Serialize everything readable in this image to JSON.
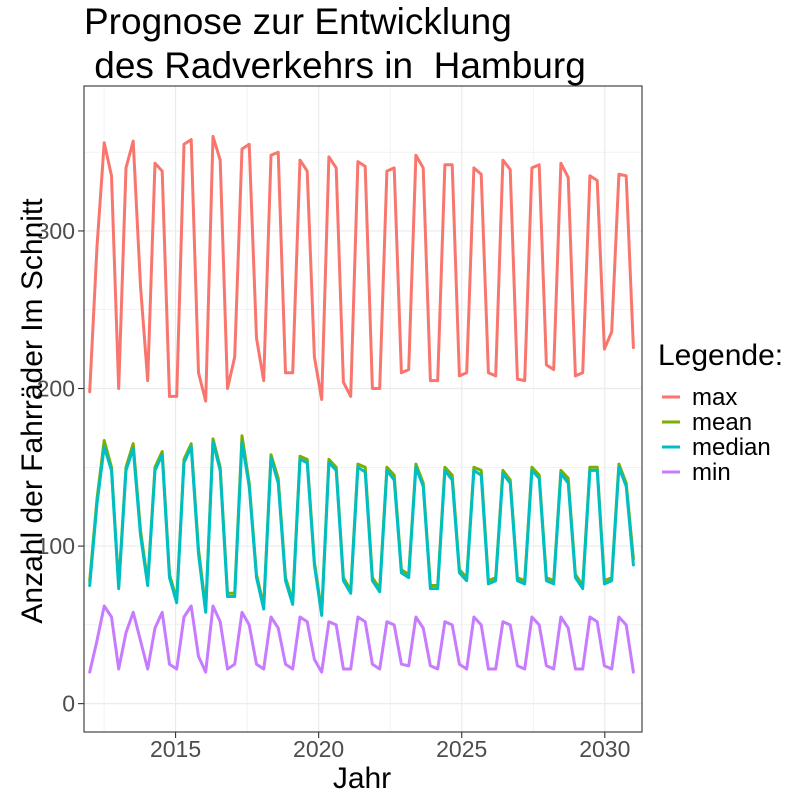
{
  "chart_data": {
    "type": "line",
    "title_lines": [
      "Prognose zur Entwicklung",
      " des Radverkehrs in  Hamburg"
    ],
    "xlabel": "Jahr",
    "ylabel": "Anzahl der Fahrräder Im Schnitt",
    "xlim": [
      2011.8,
      2031.3
    ],
    "ylim": [
      -18,
      392
    ],
    "x_ticks": [
      2015,
      2020,
      2025,
      2030
    ],
    "x_tick_labels": [
      "2015",
      "2020",
      "2025",
      "2030"
    ],
    "y_ticks": [
      0,
      100,
      200,
      300
    ],
    "y_tick_labels": [
      "0",
      "100",
      "200",
      "300"
    ],
    "grid": true,
    "legend": {
      "title": "Legende:",
      "position": "right",
      "entries": [
        "max",
        "mean",
        "median",
        "min"
      ]
    },
    "x_start": 2012.0,
    "x_end": 2031.0,
    "series": [
      {
        "name": "max",
        "color": "#F8766D",
        "values": [
          198,
          290,
          356,
          335,
          200,
          340,
          357,
          265,
          205,
          343,
          338,
          195,
          195,
          355,
          358,
          210,
          192,
          360,
          345,
          200,
          220,
          352,
          355,
          232,
          205,
          348,
          350,
          210,
          210,
          345,
          338,
          220,
          193,
          347,
          340,
          204,
          195,
          344,
          341,
          200,
          200,
          338,
          340,
          210,
          212,
          348,
          340,
          205,
          205,
          342,
          342,
          208,
          210,
          340,
          336,
          210,
          208,
          345,
          339,
          206,
          205,
          340,
          342,
          215,
          212,
          343,
          334,
          208,
          210,
          335,
          332,
          225,
          236,
          336,
          335,
          226
        ]
      },
      {
        "name": "mean",
        "color": "#7CAE00",
        "values": [
          78,
          130,
          167,
          150,
          75,
          150,
          165,
          110,
          77,
          150,
          160,
          82,
          66,
          155,
          165,
          98,
          60,
          168,
          150,
          70,
          70,
          170,
          140,
          82,
          62,
          158,
          143,
          80,
          65,
          157,
          155,
          90,
          58,
          155,
          150,
          80,
          72,
          152,
          150,
          80,
          73,
          150,
          145,
          85,
          82,
          152,
          140,
          75,
          75,
          150,
          145,
          85,
          80,
          150,
          148,
          78,
          80,
          148,
          142,
          80,
          78,
          150,
          145,
          80,
          78,
          148,
          143,
          82,
          75,
          150,
          150,
          78,
          80,
          152,
          140,
          92
        ]
      },
      {
        "name": "median",
        "color": "#00BFC4",
        "values": [
          75,
          127,
          163,
          148,
          73,
          148,
          162,
          107,
          75,
          148,
          158,
          80,
          64,
          153,
          163,
          95,
          58,
          166,
          148,
          68,
          68,
          166,
          138,
          80,
          60,
          156,
          140,
          78,
          63,
          155,
          153,
          88,
          56,
          153,
          148,
          78,
          70,
          150,
          147,
          78,
          71,
          148,
          142,
          83,
          80,
          150,
          138,
          73,
          73,
          148,
          142,
          83,
          78,
          148,
          145,
          76,
          78,
          146,
          140,
          78,
          76,
          148,
          143,
          78,
          76,
          146,
          140,
          80,
          73,
          148,
          148,
          76,
          78,
          150,
          138,
          88
        ]
      },
      {
        "name": "min",
        "color": "#C77CFF",
        "values": [
          20,
          40,
          62,
          55,
          22,
          45,
          58,
          40,
          22,
          48,
          58,
          25,
          22,
          55,
          62,
          30,
          20,
          62,
          52,
          22,
          25,
          58,
          50,
          25,
          22,
          55,
          48,
          25,
          22,
          55,
          52,
          28,
          20,
          52,
          50,
          22,
          22,
          55,
          52,
          25,
          22,
          52,
          50,
          25,
          24,
          55,
          48,
          24,
          22,
          52,
          50,
          25,
          22,
          55,
          50,
          22,
          22,
          52,
          50,
          24,
          22,
          55,
          50,
          24,
          22,
          55,
          48,
          22,
          22,
          55,
          52,
          24,
          22,
          55,
          50,
          20
        ]
      }
    ]
  }
}
